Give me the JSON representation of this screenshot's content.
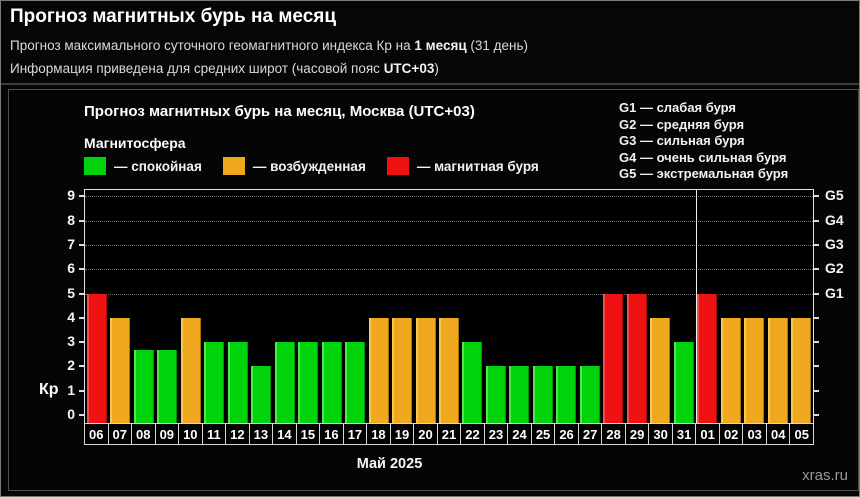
{
  "page": {
    "title": "Прогноз магнитных бурь на месяц",
    "subtitle1": {
      "prefix": "Прогноз максимального суточного геомагнитного индекса Кр на ",
      "bold": "1 месяц",
      "suffix": " (31 день)"
    },
    "subtitle2": {
      "prefix": "Информация приведена для средних широт (часовой пояс ",
      "bold": "UTC+03",
      "suffix": ")"
    },
    "watermark": "xras.ru"
  },
  "chart_data": {
    "type": "bar",
    "title": "Прогноз магнитных бурь на месяц, Москва (UTC+03)",
    "legend_title": "Магнитосфера",
    "legend": [
      {
        "status": "quiet",
        "color": "#00d20c",
        "label": "— спокойная"
      },
      {
        "status": "excited",
        "color": "#f0a81e",
        "label": "— возбужденная"
      },
      {
        "status": "storm",
        "color": "#ee1212",
        "label": "— магнитная буря"
      }
    ],
    "g_scale_legend": [
      "G1 — слабая буря",
      "G2 — средняя буря",
      "G3 — сильная буря",
      "G4 — очень сильная буря",
      "G5 — экстремальная буря"
    ],
    "ylabel": "Кр",
    "xlabel": "Май 2025",
    "ylim": [
      0,
      9
    ],
    "yticks": [
      0,
      1,
      2,
      3,
      4,
      5,
      6,
      7,
      8,
      9
    ],
    "gridlines_at": [
      5,
      6,
      7,
      8,
      9
    ],
    "right_axis_labels": [
      {
        "label": "G1",
        "value": 5
      },
      {
        "label": "G2",
        "value": 6
      },
      {
        "label": "G3",
        "value": 7
      },
      {
        "label": "G4",
        "value": 8
      },
      {
        "label": "G5",
        "value": 9
      }
    ],
    "categories": [
      "06",
      "07",
      "08",
      "09",
      "10",
      "11",
      "12",
      "13",
      "14",
      "15",
      "16",
      "17",
      "18",
      "19",
      "20",
      "21",
      "22",
      "23",
      "24",
      "25",
      "26",
      "27",
      "28",
      "29",
      "30",
      "31",
      "01",
      "02",
      "03",
      "04",
      "05"
    ],
    "values": [
      5,
      4,
      2.67,
      2.67,
      4,
      3,
      3,
      2,
      3,
      3,
      3,
      3,
      4,
      4,
      4,
      4,
      3,
      2,
      2,
      2,
      2,
      2,
      5,
      5,
      4,
      3,
      5,
      4,
      4,
      4,
      4
    ],
    "statuses": [
      "storm",
      "excited",
      "quiet",
      "quiet",
      "excited",
      "quiet",
      "quiet",
      "quiet",
      "quiet",
      "quiet",
      "quiet",
      "quiet",
      "excited",
      "excited",
      "excited",
      "excited",
      "quiet",
      "quiet",
      "quiet",
      "quiet",
      "quiet",
      "quiet",
      "storm",
      "storm",
      "excited",
      "quiet",
      "storm",
      "excited",
      "excited",
      "excited",
      "excited"
    ],
    "month_separator_after_index": 25,
    "legend_position": "top-left",
    "grid": "dotted horizontal at Kp 5-9"
  }
}
